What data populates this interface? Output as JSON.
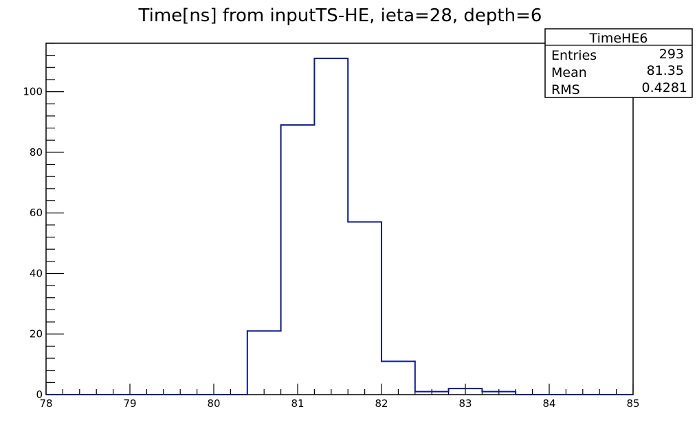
{
  "chart_data": {
    "type": "histogram",
    "title": "Time[ns] from inputTS-HE, ieta=28, depth=6",
    "xlabel": "",
    "ylabel": "",
    "xlim": [
      78,
      85
    ],
    "ylim": [
      0,
      116
    ],
    "x_ticks": [
      78,
      79,
      80,
      81,
      82,
      83,
      84,
      85
    ],
    "y_ticks": [
      0,
      20,
      40,
      60,
      80,
      100
    ],
    "bin_edges": [
      80.4,
      80.8,
      81.2,
      81.6,
      82.0,
      82.4,
      82.8,
      83.2,
      83.6
    ],
    "values": [
      21,
      89,
      111,
      57,
      11,
      1,
      2,
      1
    ],
    "line_color": "#0b1a80",
    "grid": false,
    "stats_box": {
      "name": "TimeHE6",
      "entries_label": "Entries",
      "entries": "293",
      "mean_label": "Mean",
      "mean": "81.35",
      "rms_label": "RMS",
      "rms": "0.4281",
      "placement": "top-right"
    }
  }
}
